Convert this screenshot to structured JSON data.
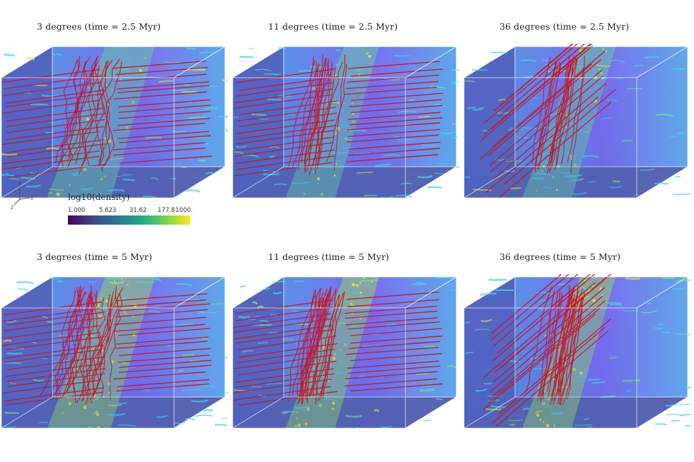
{
  "panels": [
    {
      "id": "p1",
      "caption": "3 degrees (time = 2.5 Myr)",
      "angle_deg": 3,
      "time_myr": 2.5
    },
    {
      "id": "p2",
      "caption": "11 degrees (time = 2.5 Myr)",
      "angle_deg": 11,
      "time_myr": 2.5
    },
    {
      "id": "p3",
      "caption": "36 degrees (time = 2.5 Myr)",
      "angle_deg": 36,
      "time_myr": 2.5
    },
    {
      "id": "p4",
      "caption": "3 degrees (time = 5 Myr)",
      "angle_deg": 3,
      "time_myr": 5
    },
    {
      "id": "p5",
      "caption": "11 degrees (time = 5 Myr)",
      "angle_deg": 11,
      "time_myr": 5
    },
    {
      "id": "p6",
      "caption": "36 degrees (time = 5 Myr)",
      "angle_deg": 36,
      "time_myr": 5
    }
  ],
  "colorbar": {
    "title": "log10(density)",
    "ticks": [
      "1.000",
      "5.623",
      "31.62",
      "177.8",
      "1000."
    ],
    "colormap": "viridis",
    "colors": [
      "#440154",
      "#3b528b",
      "#21918c",
      "#5ec962",
      "#fde725"
    ]
  },
  "axes_triad": {
    "x": "X",
    "y": "Y",
    "z": "Z"
  },
  "field_line_color": "#d40f0f"
}
